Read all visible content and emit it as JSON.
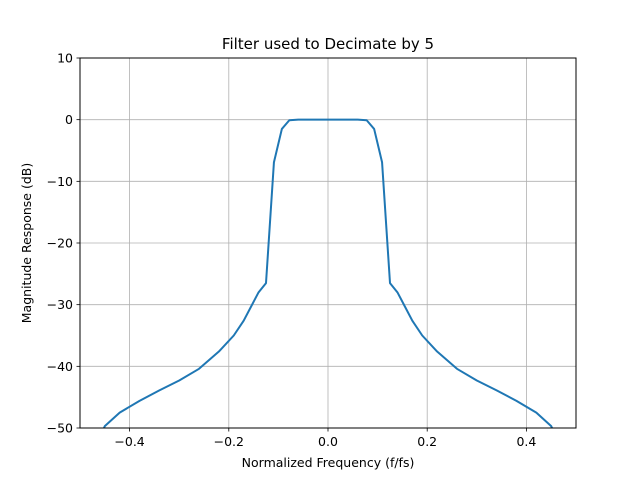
{
  "chart_data": {
    "type": "line",
    "title": "Filter used to Decimate by 5",
    "xlabel": "Normalized Frequency (f/fs)",
    "ylabel": "Magnitude Response (dB)",
    "xlim": [
      -0.5,
      0.5
    ],
    "ylim": [
      -50,
      10
    ],
    "xticks": [
      -0.4,
      -0.2,
      0.0,
      0.2,
      0.4
    ],
    "xtick_labels": [
      "−0.4",
      "−0.2",
      "0.0",
      "0.2",
      "0.4"
    ],
    "yticks": [
      -50,
      -40,
      -30,
      -20,
      -10,
      0,
      10
    ],
    "ytick_labels": [
      "−50",
      "−40",
      "−30",
      "−20",
      "−10",
      "0",
      "10"
    ],
    "grid": true,
    "line_color": "#1f77b4",
    "series": [
      {
        "x": [
          -0.46,
          -0.45,
          -0.42,
          -0.38,
          -0.34,
          -0.3,
          -0.26,
          -0.22,
          -0.19,
          -0.17,
          -0.155,
          -0.14,
          -0.125,
          -0.109,
          -0.093,
          -0.078,
          -0.06,
          -0.04,
          -0.02,
          0.0,
          0.02,
          0.04,
          0.06,
          0.078,
          0.093,
          0.109,
          0.125,
          0.14,
          0.155,
          0.17,
          0.19,
          0.22,
          0.26,
          0.3,
          0.34,
          0.38,
          0.42,
          0.45,
          0.46
        ],
        "y": [
          -51.5,
          -49.7,
          -47.5,
          -45.6,
          -43.9,
          -42.3,
          -40.4,
          -37.6,
          -35.0,
          -32.6,
          -30.3,
          -28.0,
          -26.5,
          -6.9,
          -1.5,
          -0.1,
          0.0,
          0.0,
          0.0,
          0.0,
          0.0,
          0.0,
          0.0,
          -0.1,
          -1.5,
          -6.9,
          -26.5,
          -28.0,
          -30.3,
          -32.6,
          -35.0,
          -37.6,
          -40.4,
          -42.3,
          -43.9,
          -45.6,
          -47.5,
          -49.7,
          -51.5
        ]
      }
    ]
  }
}
